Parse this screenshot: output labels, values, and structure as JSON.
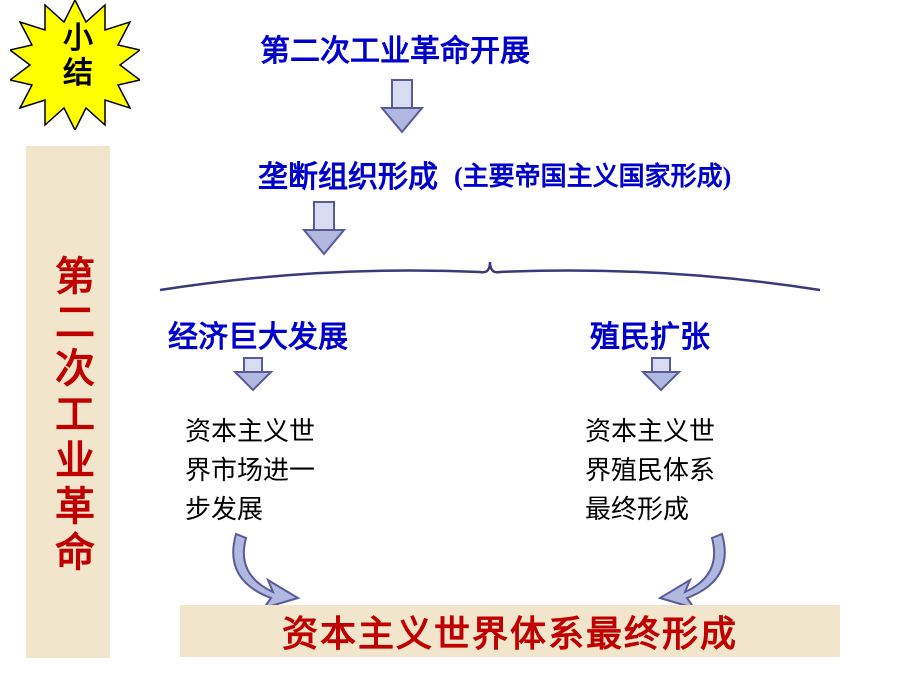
{
  "colors": {
    "yellow": "#ffff00",
    "blue_text": "#0000cc",
    "red_text": "#c00000",
    "beige": "#f1e6cc",
    "arrow_fill": "#b0b8e0",
    "arrow_stroke": "#5a5a99",
    "arrow_body_fill": "#d8dcf0"
  },
  "starburst": {
    "text": "小\n结"
  },
  "side_label": "第二次工业革命",
  "nodes": {
    "top": {
      "text": "第二次工业革命开展",
      "fontsize": 30
    },
    "monopoly_main": {
      "text": "垄断组织形成",
      "fontsize": 30
    },
    "monopoly_sub": {
      "text": "(主要帝国主义国家形成)",
      "fontsize": 26
    },
    "left_branch": {
      "text": "经济巨大发展",
      "fontsize": 30
    },
    "right_branch": {
      "text": "殖民扩张",
      "fontsize": 30
    },
    "left_result": {
      "line1": "资本主义世",
      "line2": "界市场进一",
      "line3": "步发展"
    },
    "right_result": {
      "line1": "资本主义世",
      "line2": "界殖民体系",
      "line3": "最终形成"
    },
    "bottom": {
      "text": "资本主义世界体系最终形成",
      "fontsize": 36
    }
  }
}
